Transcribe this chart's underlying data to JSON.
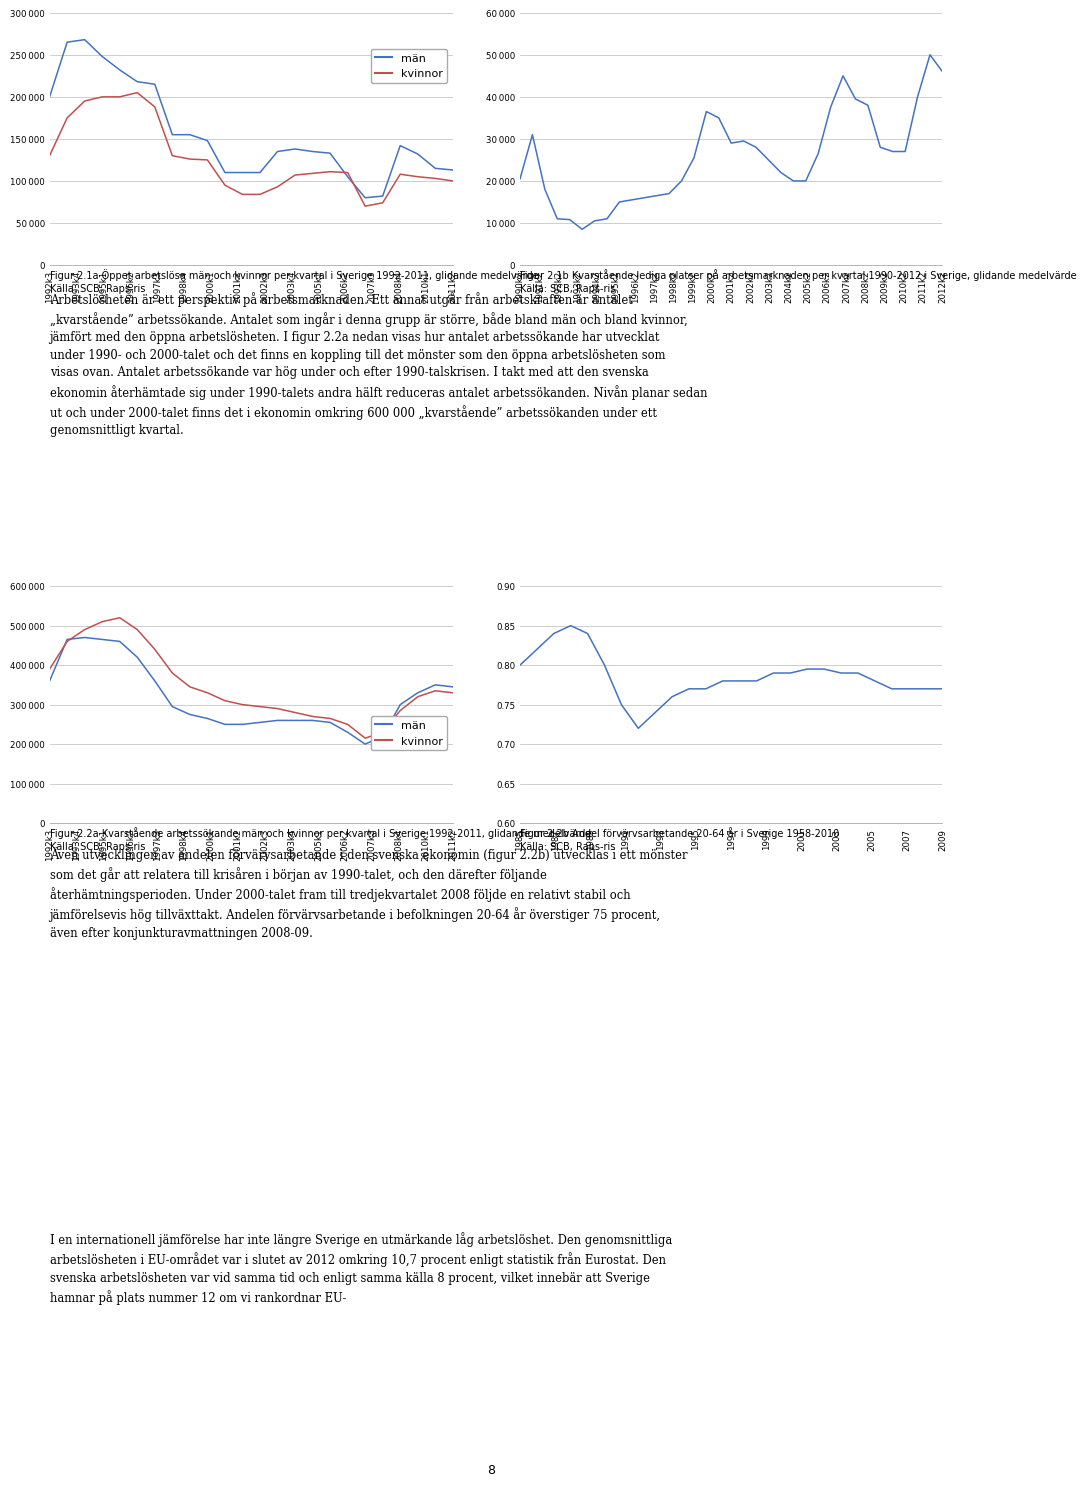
{
  "fig1a": {
    "ylim": [
      0,
      300000
    ],
    "yticks": [
      0,
      50000,
      100000,
      150000,
      200000,
      250000,
      300000
    ],
    "xticks": [
      "1992k3",
      "1993k4",
      "1995k1",
      "1996k2",
      "1997k3",
      "1998k4",
      "2000k1",
      "2001k2",
      "2002k3",
      "2003k4",
      "2005k1",
      "2006k2",
      "2007k3",
      "2008k4",
      "2010k1",
      "2011k2"
    ],
    "man_color": "#4472C4",
    "kvinna_color": "#C0504D",
    "man_values": [
      200000,
      265000,
      268000,
      248000,
      232000,
      218000,
      215000,
      155000,
      155000,
      148000,
      110000,
      110000,
      110000,
      135000,
      138000,
      135000,
      133000,
      105000,
      80000,
      82000,
      142000,
      132000,
      115000,
      113000
    ],
    "kvinna_values": [
      130000,
      175000,
      195000,
      200000,
      200000,
      205000,
      188000,
      130000,
      126000,
      125000,
      95000,
      84000,
      84000,
      93000,
      107000,
      109000,
      111000,
      110000,
      70000,
      74000,
      108000,
      105000,
      103000,
      100000
    ],
    "caption": "Figur 2.1a Öppet arbetslösa män och kvinnor per kvartal i Sverige 1992-2011, glidande medelvärde\nKälla: SCB, Raps-ris"
  },
  "fig1b": {
    "ylim": [
      0,
      60000
    ],
    "yticks": [
      0,
      10000,
      20000,
      30000,
      40000,
      50000,
      60000
    ],
    "xticks": [
      "1990k2",
      "1991k2",
      "1992k2",
      "1993k2",
      "1994k2",
      "1995k2",
      "1996k2",
      "1997k2",
      "1998k2",
      "1999k2",
      "2000k2",
      "2001k2",
      "2002k2",
      "2003k2",
      "2004k2",
      "2005k2",
      "2006k2",
      "2007k2",
      "2008k2",
      "2009k2",
      "2010k2",
      "2011k2",
      "2012k2"
    ],
    "line_color": "#4472C4",
    "values": [
      20500,
      31000,
      18000,
      11000,
      10800,
      8500,
      10500,
      11000,
      15000,
      15500,
      16000,
      16500,
      17000,
      20000,
      25500,
      36500,
      35000,
      29000,
      29500,
      28000,
      25000,
      22000,
      20000,
      20000,
      26500,
      37500,
      45000,
      39500,
      38000,
      28000,
      27000,
      27000,
      40000,
      50000,
      46000
    ],
    "caption": "Figur 2.1b Kvarstående lediga platser på arbetsmarknaden per kvartal 1990-2012 i Sverige, glidande medelvärde\nKälla: SCB, Raps-ris"
  },
  "fig2a": {
    "ylim": [
      0,
      600000
    ],
    "yticks": [
      0,
      100000,
      200000,
      300000,
      400000,
      500000,
      600000
    ],
    "xticks": [
      "1992k3",
      "1993k4",
      "1995k1",
      "1996k2",
      "1997k3",
      "1998k4",
      "2000k1",
      "2001k2",
      "2002k3",
      "2003k4",
      "2005k1",
      "2006k2",
      "2007k3",
      "2008k4",
      "2010k1",
      "2011k2"
    ],
    "man_color": "#4472C4",
    "kvinna_color": "#C0504D",
    "man_values": [
      360000,
      465000,
      470000,
      465000,
      460000,
      420000,
      360000,
      295000,
      275000,
      265000,
      250000,
      250000,
      255000,
      260000,
      260000,
      260000,
      255000,
      230000,
      200000,
      220000,
      300000,
      330000,
      350000,
      345000
    ],
    "kvinna_values": [
      390000,
      460000,
      490000,
      510000,
      520000,
      490000,
      440000,
      380000,
      345000,
      330000,
      310000,
      300000,
      295000,
      290000,
      280000,
      270000,
      265000,
      250000,
      215000,
      230000,
      285000,
      320000,
      335000,
      330000
    ],
    "caption": "Figur 2.2a Kvarstående arbetssökande män och kvinnor per kvartal i Sverige 1992-2011, glidande medelvärde\nKälla: SCB, Raps-ris"
  },
  "fig2b": {
    "ylim": [
      0.6,
      0.9
    ],
    "yticks": [
      0.6,
      0.65,
      0.7,
      0.75,
      0.8,
      0.85,
      0.9
    ],
    "xticks": [
      "1985",
      "1987",
      "1989",
      "1991",
      "1993",
      "1995",
      "1997",
      "1999",
      "2001",
      "2003",
      "2005",
      "2007",
      "2009"
    ],
    "line_color": "#4472C4",
    "values": [
      0.8,
      0.82,
      0.84,
      0.85,
      0.84,
      0.8,
      0.75,
      0.72,
      0.74,
      0.76,
      0.77,
      0.77,
      0.78,
      0.78,
      0.78,
      0.79,
      0.79,
      0.795,
      0.795,
      0.79,
      0.79,
      0.78,
      0.77,
      0.77,
      0.77,
      0.77
    ],
    "caption": "Figur 2.2b Andel förvärvsarbetande 20-64 år i Sverige 1958-2010\nKälla: SCB, Raps-ris"
  },
  "text1": "Arbetslösheten är ett perspektiv på arbetsmarknaden. Ett annat utgår från arbetskraften är antalet „kvarstående” arbetssökande. Antalet som ingår i denna grupp är större, både bland män och bland kvinnor, jämfört med den öppna arbetslösheten. I figur 2.2a nedan visas hur antalet arbetssökande har utvecklat under 1990- och 2000-talet och det finns en koppling till det mönster som den öppna arbetslösheten som visas ovan. Antalet arbetssökande var hög under och efter 1990-talskrisen. I takt med att den svenska ekonomin återhämtade sig under 1990-talets andra hälft reduceras antalet arbetssökanden. Nivån planar sedan ut och under 2000-talet finns det i ekonomin omkring 600 000 „kvarstående” arbetssökanden under ett genomsnittligt kvartal.",
  "text2": "Även utvecklingen av andelen förvärvsarbetande i den svenska ekonomin (figur 2.2b) utvecklas i ett mönster som det går att relatera till krisåren i början av 1990-talet, och den därefter följande återhämtningsperioden. Under 2000-talet fram till tredjekvartalet 2008 följde en relativt stabil och jämförelsevis hög tillväxttakt. Andelen förvärvsarbetande i befolkningen 20-64 år överstiger 75 procent, även efter konjunkturavmattningen 2008-09.",
  "text3": "I en internationell jämförelse har inte längre Sverige en utmärkande låg arbetslöshet. Den genomsnittliga arbetslösheten i EU-området var i slutet av 2012 omkring 10,7 procent enligt statistik från Eurostat. Den svenska arbetslösheten var vid samma tid och enligt samma källa 8 procent, vilket innebär att Sverige hamnar på plats nummer 12 om vi rankordnar EU-",
  "page_number": "8",
  "background_color": "#ffffff",
  "grid_color": "#bbbbbb"
}
